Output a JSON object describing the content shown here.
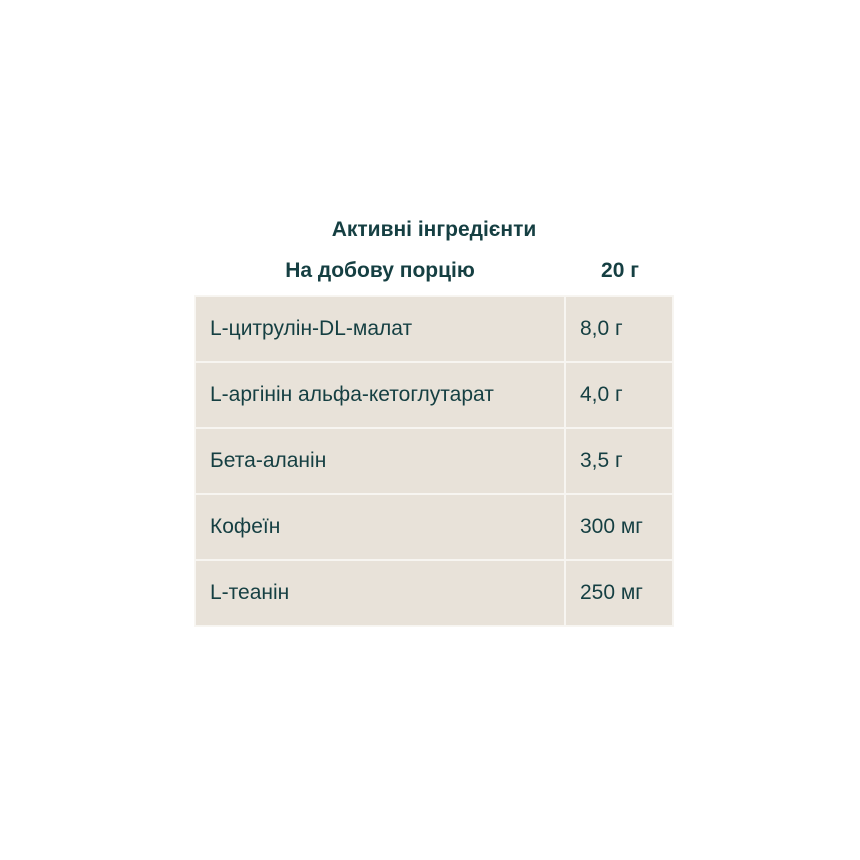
{
  "title": "Активні інгредієнти",
  "header": {
    "label": "На добову порцію",
    "amount": "20 г"
  },
  "rows": [
    {
      "name": "L-цитрулін-DL-малат",
      "amount": "8,0 г"
    },
    {
      "name": "L-аргінін альфа-кетоглутарат",
      "amount": "4,0 г"
    },
    {
      "name": "Бета-аланін",
      "amount": "3,5 г"
    },
    {
      "name": "Кофеїн",
      "amount": "300 мг"
    },
    {
      "name": "L-теанін",
      "amount": "250 мг"
    }
  ]
}
